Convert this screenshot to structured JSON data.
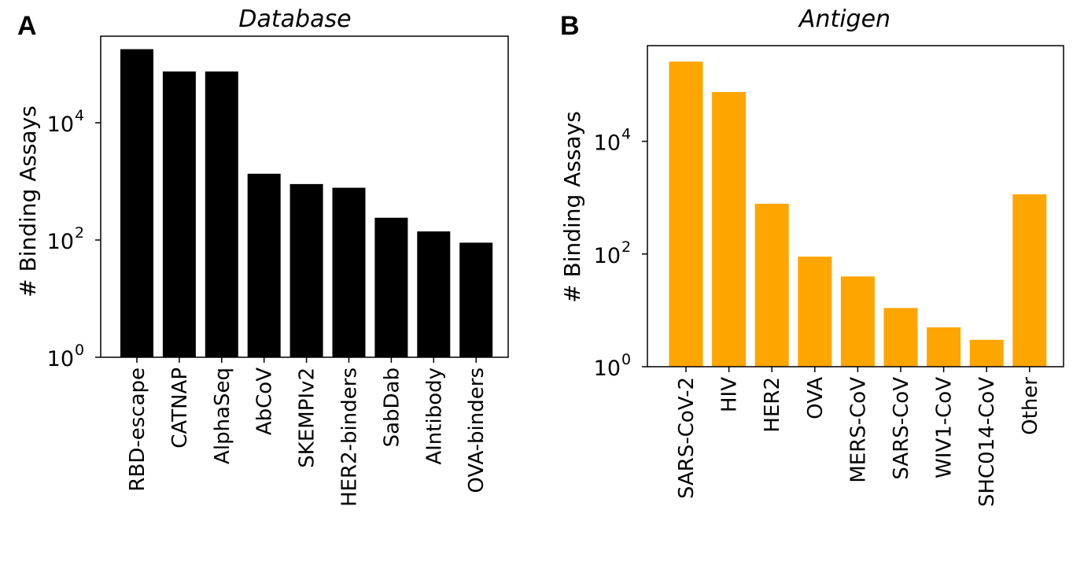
{
  "panels": [
    {
      "letter": "A",
      "chart_data": {
        "type": "bar",
        "title": "Database",
        "xlabel": "",
        "ylabel": "# Binding Assays",
        "yscale": "log",
        "ylim": [
          1,
          300000
        ],
        "yticks": [
          {
            "base": "10",
            "exp": "0"
          },
          {
            "base": "10",
            "exp": "2"
          },
          {
            "base": "10",
            "exp": "4"
          }
        ],
        "bar_color": "#000000",
        "categories": [
          "RBD-escape",
          "CATNAP",
          "AlphaSeq",
          "AbCoV",
          "SKEMPIv2",
          "HER2-binders",
          "SabDab",
          "AIntibody",
          "OVA-binders"
        ],
        "values": [
          180000,
          75000,
          75000,
          1350,
          900,
          780,
          240,
          140,
          90
        ]
      }
    },
    {
      "letter": "B",
      "chart_data": {
        "type": "bar",
        "title": "Antigen",
        "xlabel": "",
        "ylabel": "# Binding Assays",
        "yscale": "log",
        "ylim": [
          1,
          500000
        ],
        "yticks": [
          {
            "base": "10",
            "exp": "0"
          },
          {
            "base": "10",
            "exp": "2"
          },
          {
            "base": "10",
            "exp": "4"
          }
        ],
        "bar_color": "#ffa500",
        "categories": [
          "SARS-CoV-2",
          "HIV",
          "HER2",
          "OVA",
          "MERS-CoV",
          "SARS-CoV",
          "WIV1-CoV",
          "SHC014-CoV",
          "Other"
        ],
        "values": [
          260000,
          75000,
          780,
          90,
          40,
          11,
          5,
          3,
          1150
        ]
      }
    }
  ]
}
